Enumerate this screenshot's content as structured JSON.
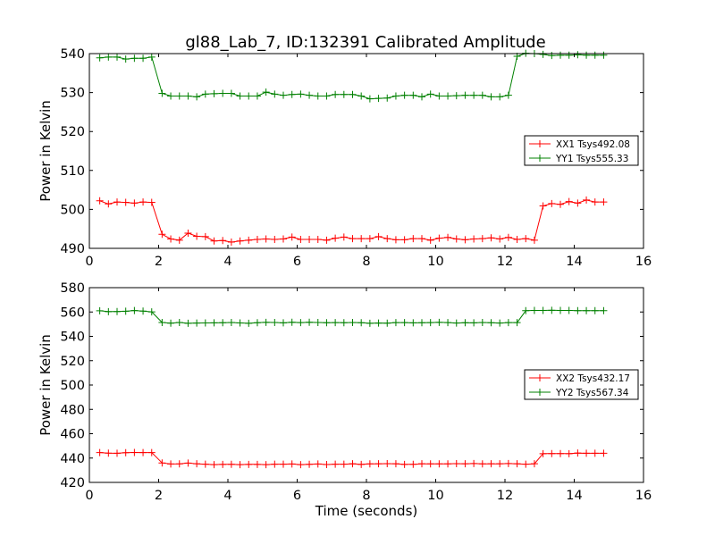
{
  "figure": {
    "title": "gl88_Lab_7, ID:132391 Calibrated Amplitude"
  },
  "colors": {
    "XX": "#ff0000",
    "YY": "#008000",
    "frame": "#000000"
  },
  "chart_data": [
    {
      "type": "line",
      "title": "gl88_Lab_7, ID:132391 Calibrated Amplitude",
      "xlabel": "",
      "ylabel": "Power in Kelvin",
      "xlim": [
        0,
        16
      ],
      "ylim": [
        490,
        540
      ],
      "xticks": [
        0,
        2,
        4,
        6,
        8,
        10,
        12,
        14,
        16
      ],
      "yticks": [
        490,
        500,
        510,
        520,
        530,
        540
      ],
      "grid": false,
      "legend": "center-right",
      "x": [
        0.3,
        0.55,
        0.8,
        1.05,
        1.3,
        1.55,
        1.8,
        2.1,
        2.35,
        2.6,
        2.85,
        3.1,
        3.35,
        3.6,
        3.85,
        4.1,
        4.35,
        4.6,
        4.85,
        5.1,
        5.35,
        5.6,
        5.85,
        6.1,
        6.35,
        6.6,
        6.85,
        7.1,
        7.35,
        7.6,
        7.85,
        8.1,
        8.35,
        8.6,
        8.85,
        9.1,
        9.35,
        9.6,
        9.85,
        10.1,
        10.35,
        10.6,
        10.85,
        11.1,
        11.35,
        11.6,
        11.85,
        12.1,
        12.35,
        12.6,
        12.85,
        13.1,
        13.35,
        13.6,
        13.85,
        14.1,
        14.35,
        14.6,
        14.85
      ],
      "series": [
        {
          "name": "XX1 Tsys492.08",
          "color": "#ff0000",
          "values": [
            502.2,
            501.4,
            501.9,
            501.8,
            501.6,
            501.9,
            501.8,
            493.6,
            492.4,
            492.1,
            493.9,
            493.1,
            493.0,
            491.9,
            492.0,
            491.6,
            491.9,
            492.1,
            492.3,
            492.4,
            492.3,
            492.4,
            492.9,
            492.3,
            492.3,
            492.3,
            492.1,
            492.6,
            492.9,
            492.5,
            492.5,
            492.5,
            493.0,
            492.5,
            492.2,
            492.2,
            492.5,
            492.5,
            492.1,
            492.6,
            492.8,
            492.4,
            492.2,
            492.4,
            492.5,
            492.7,
            492.4,
            492.8,
            492.3,
            492.5,
            492.1,
            500.9,
            501.5,
            501.3,
            502.0,
            501.6,
            502.4,
            501.9,
            501.9
          ]
        },
        {
          "name": "YY1 Tsys555.33",
          "color": "#008000",
          "values": [
            538.9,
            539.1,
            539.1,
            538.6,
            538.8,
            538.8,
            539.1,
            529.8,
            529.1,
            529.1,
            529.1,
            528.9,
            529.6,
            529.7,
            529.8,
            529.8,
            529.1,
            529.1,
            529.1,
            530.1,
            529.6,
            529.3,
            529.5,
            529.6,
            529.3,
            529.1,
            529.1,
            529.5,
            529.5,
            529.5,
            529.1,
            528.4,
            528.5,
            528.6,
            529.1,
            529.3,
            529.3,
            528.9,
            529.6,
            529.1,
            529.1,
            529.2,
            529.3,
            529.3,
            529.3,
            528.9,
            528.9,
            529.3,
            539.3,
            540.1,
            540.0,
            539.8,
            539.5,
            539.6,
            539.6,
            539.7,
            539.6,
            539.6,
            539.6
          ]
        }
      ]
    },
    {
      "type": "line",
      "title": "",
      "xlabel": "Time (seconds)",
      "ylabel": "Power in Kelvin",
      "xlim": [
        0,
        16
      ],
      "ylim": [
        420,
        580
      ],
      "xticks": [
        0,
        2,
        4,
        6,
        8,
        10,
        12,
        14,
        16
      ],
      "yticks": [
        420,
        440,
        460,
        480,
        500,
        520,
        540,
        560,
        580
      ],
      "grid": false,
      "legend": "center-right",
      "x": [
        0.3,
        0.55,
        0.8,
        1.05,
        1.3,
        1.55,
        1.8,
        2.1,
        2.35,
        2.6,
        2.85,
        3.1,
        3.35,
        3.6,
        3.85,
        4.1,
        4.35,
        4.6,
        4.85,
        5.1,
        5.35,
        5.6,
        5.85,
        6.1,
        6.35,
        6.6,
        6.85,
        7.1,
        7.35,
        7.6,
        7.85,
        8.1,
        8.35,
        8.6,
        8.85,
        9.1,
        9.35,
        9.6,
        9.85,
        10.1,
        10.35,
        10.6,
        10.85,
        11.1,
        11.35,
        11.6,
        11.85,
        12.1,
        12.35,
        12.6,
        12.85,
        13.1,
        13.35,
        13.6,
        13.85,
        14.1,
        14.35,
        14.6,
        14.85
      ],
      "series": [
        {
          "name": "XX2 Tsys432.17",
          "color": "#ff0000",
          "values": [
            444.5,
            444.0,
            443.9,
            444.4,
            444.6,
            444.5,
            444.5,
            436.0,
            435.1,
            435.2,
            435.9,
            435.3,
            435.0,
            434.6,
            434.8,
            434.9,
            434.6,
            434.8,
            434.8,
            434.6,
            435.0,
            435.0,
            435.1,
            434.6,
            434.9,
            435.1,
            434.7,
            435.0,
            435.0,
            435.3,
            434.8,
            435.2,
            435.3,
            435.4,
            435.3,
            434.8,
            434.9,
            435.3,
            435.2,
            435.2,
            435.2,
            435.4,
            435.3,
            435.5,
            435.2,
            435.3,
            435.3,
            435.5,
            435.3,
            435.0,
            435.3,
            443.6,
            443.7,
            443.7,
            443.6,
            444.1,
            443.9,
            443.9,
            443.9
          ]
        },
        {
          "name": "YY2 Tsys567.34",
          "color": "#008000",
          "values": [
            561.0,
            560.3,
            560.4,
            560.6,
            561.2,
            560.7,
            560.1,
            551.4,
            550.8,
            551.4,
            550.7,
            550.9,
            551.0,
            551.1,
            551.2,
            551.4,
            551.0,
            550.7,
            551.2,
            551.5,
            551.4,
            551.1,
            551.6,
            551.3,
            551.6,
            551.4,
            551.2,
            551.3,
            551.2,
            551.4,
            551.2,
            550.7,
            550.9,
            550.8,
            551.3,
            551.3,
            551.1,
            551.2,
            551.3,
            551.5,
            551.3,
            550.9,
            551.2,
            551.1,
            551.4,
            551.2,
            550.9,
            551.3,
            551.3,
            561.1,
            561.3,
            561.3,
            561.4,
            561.3,
            561.3,
            561.1,
            561.1,
            561.1,
            561.1
          ]
        }
      ]
    }
  ]
}
